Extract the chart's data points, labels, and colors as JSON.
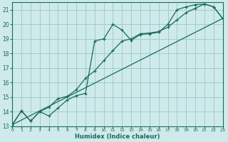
{
  "xlabel": "Humidex (Indice chaleur)",
  "bg_color": "#ceeaea",
  "grid_color": "#9ec8c8",
  "line_color": "#1a6b5a",
  "xlim": [
    0,
    23
  ],
  "ylim": [
    13,
    21.5
  ],
  "yticks": [
    13,
    14,
    15,
    16,
    17,
    18,
    19,
    20,
    21
  ],
  "xticks": [
    0,
    1,
    2,
    3,
    4,
    5,
    6,
    7,
    8,
    9,
    10,
    11,
    12,
    13,
    14,
    15,
    16,
    17,
    18,
    19,
    20,
    21,
    22,
    23
  ],
  "line1_x": [
    0,
    1,
    2,
    3,
    4,
    5,
    6,
    7,
    8,
    9,
    10,
    11,
    12,
    13,
    14,
    15,
    16,
    17,
    18,
    19,
    20,
    21,
    22,
    23
  ],
  "line1_y": [
    13.1,
    14.05,
    13.35,
    14.0,
    13.7,
    14.25,
    14.8,
    15.1,
    15.25,
    18.85,
    19.0,
    20.0,
    19.6,
    18.9,
    19.3,
    19.35,
    19.45,
    20.0,
    21.0,
    21.2,
    21.35,
    21.4,
    21.2,
    20.4
  ],
  "line2_x": [
    0,
    1,
    2,
    3,
    4,
    5,
    6,
    7,
    8,
    9,
    10,
    11,
    12,
    13,
    14,
    15,
    16,
    17,
    18,
    19,
    20,
    21,
    22,
    23
  ],
  "line2_y": [
    13.1,
    14.05,
    13.35,
    14.0,
    14.3,
    14.9,
    15.05,
    15.5,
    16.3,
    16.8,
    17.5,
    18.2,
    18.85,
    19.0,
    19.35,
    19.4,
    19.5,
    19.8,
    20.3,
    20.8,
    21.1,
    21.4,
    21.2,
    20.4
  ],
  "line3_x": [
    0,
    23
  ],
  "line3_y": [
    13.1,
    20.4
  ]
}
